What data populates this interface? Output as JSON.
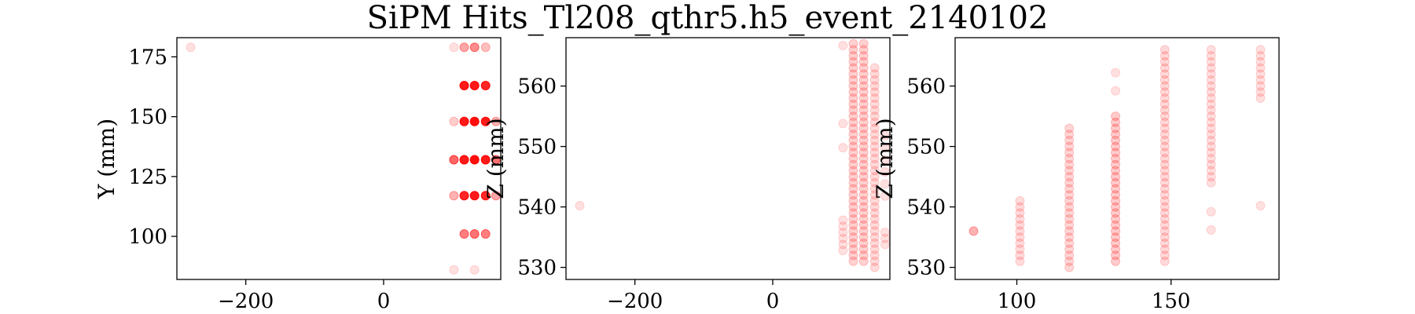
{
  "title": "SiPM Hits_Tl208_qthr5.h5_event_2140102",
  "colors": {
    "marker": "#ff0000",
    "axes": "#000000"
  },
  "chart_data": [
    {
      "type": "scatter",
      "xlabel": "",
      "ylabel": "Y (mm)",
      "xlim": [
        -300,
        170
      ],
      "ylim": [
        82,
        183
      ],
      "xticks": [
        -200,
        0
      ],
      "xtick_labels": [
        "−200",
        "0"
      ],
      "yticks": [
        100,
        125,
        150,
        175
      ],
      "ytick_labels": [
        "100",
        "125",
        "150",
        "175"
      ],
      "marker_color": "#ff0000",
      "points": [
        {
          "x": -280,
          "y": 179,
          "a": 0.12
        },
        {
          "x": 102,
          "y": 179,
          "a": 0.12
        },
        {
          "x": 117,
          "y": 179,
          "a": 0.35
        },
        {
          "x": 132,
          "y": 179,
          "a": 0.45
        },
        {
          "x": 148,
          "y": 179,
          "a": 0.25
        },
        {
          "x": 117,
          "y": 163,
          "a": 0.9
        },
        {
          "x": 132,
          "y": 163,
          "a": 0.9
        },
        {
          "x": 148,
          "y": 163,
          "a": 0.85
        },
        {
          "x": 102,
          "y": 148,
          "a": 0.2
        },
        {
          "x": 117,
          "y": 148,
          "a": 0.9
        },
        {
          "x": 132,
          "y": 148,
          "a": 0.95
        },
        {
          "x": 148,
          "y": 148,
          "a": 0.9
        },
        {
          "x": 163,
          "y": 148,
          "a": 0.3
        },
        {
          "x": 102,
          "y": 132,
          "a": 0.6
        },
        {
          "x": 117,
          "y": 132,
          "a": 0.9
        },
        {
          "x": 132,
          "y": 132,
          "a": 0.95
        },
        {
          "x": 148,
          "y": 132,
          "a": 0.9
        },
        {
          "x": 163,
          "y": 132,
          "a": 0.55
        },
        {
          "x": 102,
          "y": 117,
          "a": 0.3
        },
        {
          "x": 117,
          "y": 117,
          "a": 0.85
        },
        {
          "x": 132,
          "y": 117,
          "a": 0.9
        },
        {
          "x": 148,
          "y": 117,
          "a": 0.85
        },
        {
          "x": 163,
          "y": 117,
          "a": 0.35
        },
        {
          "x": 117,
          "y": 101,
          "a": 0.5
        },
        {
          "x": 132,
          "y": 101,
          "a": 0.55
        },
        {
          "x": 148,
          "y": 101,
          "a": 0.5
        },
        {
          "x": 102,
          "y": 86,
          "a": 0.12
        },
        {
          "x": 132,
          "y": 86,
          "a": 0.12
        }
      ]
    },
    {
      "type": "scatter",
      "xlabel": "",
      "ylabel": "Z (mm)",
      "xlim": [
        -300,
        170
      ],
      "ylim": [
        528,
        568
      ],
      "xticks": [
        -200,
        0
      ],
      "xtick_labels": [
        "−200",
        "0"
      ],
      "yticks": [
        530,
        540,
        550,
        560
      ],
      "ytick_labels": [
        "530",
        "540",
        "550",
        "560"
      ],
      "marker_color": "#ff0000",
      "points": [
        {
          "x": -280,
          "y": 540.2,
          "a": 0.12
        },
        {
          "x": 102,
          "y": 566.7,
          "a": 0.12
        },
        {
          "x": 102,
          "y": 553.8,
          "a": 0.12
        },
        {
          "x": 102,
          "y": 549.8,
          "a": 0.12
        },
        {
          "x": 102,
          "y": 537.8,
          "a": 0.12
        },
        {
          "x": 102,
          "y": 536.8,
          "a": 0.12
        },
        {
          "x": 102,
          "y": 535.8,
          "a": 0.12
        },
        {
          "x": 102,
          "y": 534.8,
          "a": 0.12
        },
        {
          "x": 102,
          "y": 533.8,
          "a": 0.12
        },
        {
          "x": 102,
          "y": 532.8,
          "a": 0.12
        },
        {
          "x": 163,
          "y": 551.8,
          "a": 0.12
        },
        {
          "x": 163,
          "y": 549.8,
          "a": 0.12
        },
        {
          "x": 163,
          "y": 547.8,
          "a": 0.12
        },
        {
          "x": 163,
          "y": 545.8,
          "a": 0.12
        },
        {
          "x": 163,
          "y": 543.8,
          "a": 0.12
        },
        {
          "x": 163,
          "y": 541.8,
          "a": 0.12
        },
        {
          "x": 163,
          "y": 535.8,
          "a": 0.12
        },
        {
          "x": 163,
          "y": 534.8,
          "a": 0.12
        },
        {
          "x": 163,
          "y": 533.8,
          "a": 0.12
        }
      ],
      "columns": [
        {
          "x": 117,
          "from": 531,
          "to": 567,
          "step": 1,
          "a": 0.18
        },
        {
          "x": 132,
          "from": 531,
          "to": 567,
          "step": 1,
          "a": 0.18
        },
        {
          "x": 148,
          "from": 530,
          "to": 563,
          "step": 1,
          "a": 0.14
        }
      ]
    },
    {
      "type": "scatter",
      "xlabel": "",
      "ylabel": "Z (mm)",
      "xlim": [
        80,
        185
      ],
      "ylim": [
        528,
        568
      ],
      "xticks": [
        100,
        150
      ],
      "xtick_labels": [
        "100",
        "150"
      ],
      "yticks": [
        530,
        540,
        550,
        560
      ],
      "ytick_labels": [
        "530",
        "540",
        "550",
        "560"
      ],
      "marker_color": "#ff0000",
      "points": [
        {
          "x": 86,
          "y": 536,
          "a": 0.3
        },
        {
          "x": 179,
          "y": 540.2,
          "a": 0.12
        },
        {
          "x": 163,
          "y": 539.2,
          "a": 0.12
        },
        {
          "x": 163,
          "y": 536.2,
          "a": 0.12
        },
        {
          "x": 132,
          "y": 562.2,
          "a": 0.12
        },
        {
          "x": 132,
          "y": 559.2,
          "a": 0.12
        }
      ],
      "columns": [
        {
          "x": 101,
          "from": 531,
          "to": 541,
          "step": 1,
          "a": 0.14
        },
        {
          "x": 117,
          "from": 530,
          "to": 553,
          "step": 1,
          "a": 0.16
        },
        {
          "x": 132,
          "from": 531,
          "to": 555,
          "step": 1,
          "a": 0.2
        },
        {
          "x": 148,
          "from": 531,
          "to": 566,
          "step": 1,
          "a": 0.15
        },
        {
          "x": 163,
          "from": 544,
          "to": 566,
          "step": 1,
          "a": 0.13
        },
        {
          "x": 179,
          "from": 558,
          "to": 566,
          "step": 1,
          "a": 0.13
        }
      ]
    }
  ]
}
